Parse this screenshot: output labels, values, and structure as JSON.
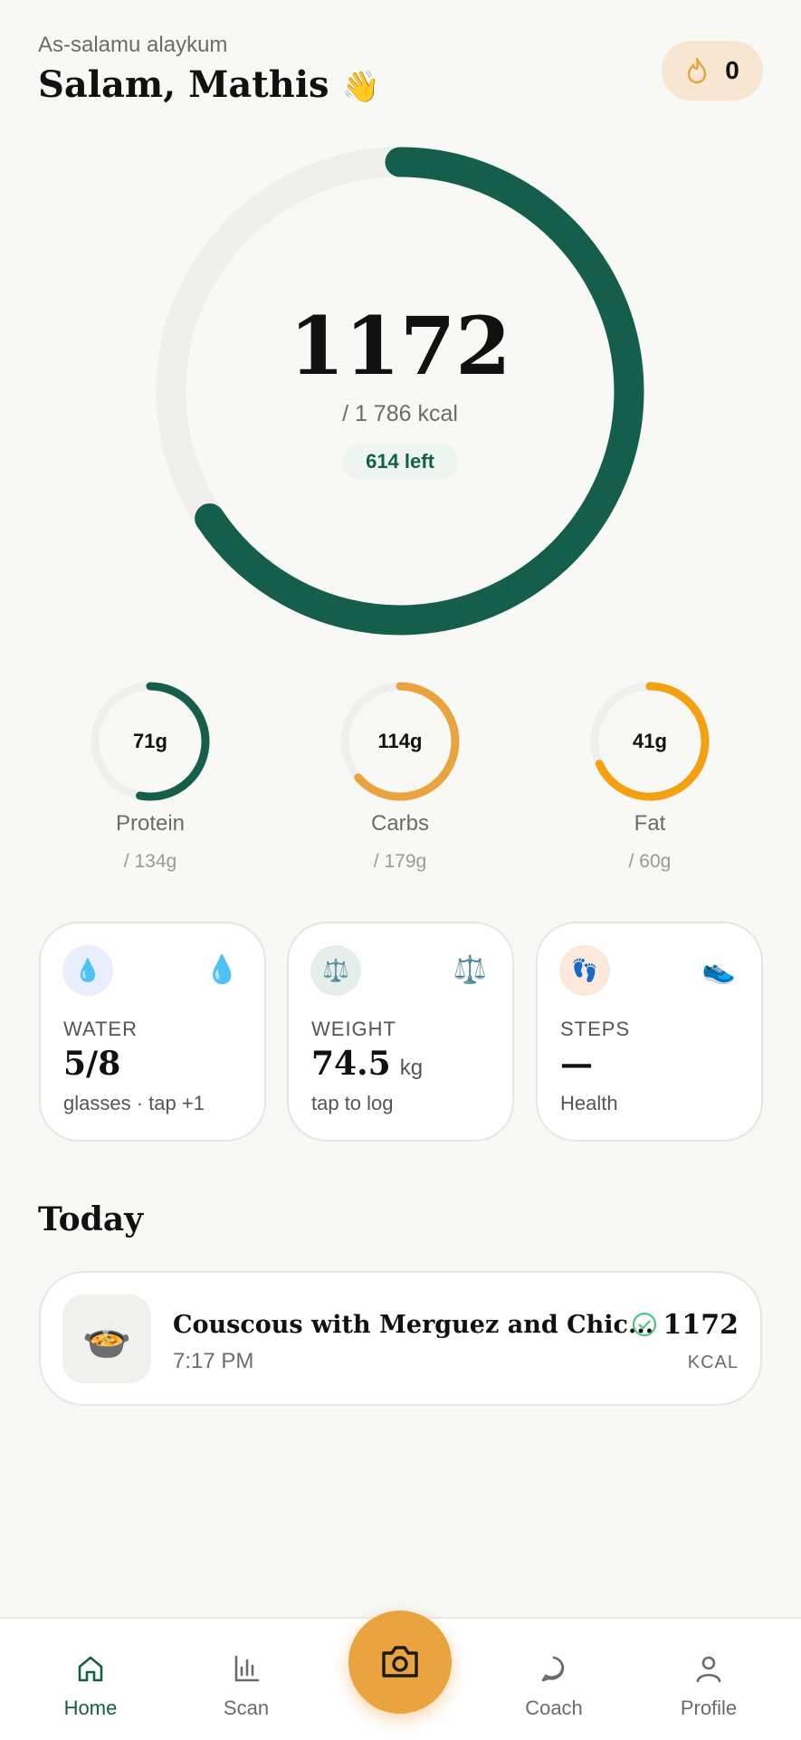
{
  "header": {
    "greeting": "As-salamu alaykum",
    "title": "Salam, Mathis",
    "emoji": "👋",
    "streak": "0"
  },
  "calories": {
    "consumed": 1172,
    "goal": 1786,
    "goal_label": "/ 1 786 kcal",
    "remaining_label": "614 left"
  },
  "macros": [
    {
      "name": "Protein",
      "value": 71,
      "value_label": "71g",
      "goal": 134,
      "goal_label": "/ 134g",
      "color": "#155e4b"
    },
    {
      "name": "Carbs",
      "value": 114,
      "value_label": "114g",
      "goal": 179,
      "goal_label": "/ 179g",
      "color": "#e9a440"
    },
    {
      "name": "Fat",
      "value": 41,
      "value_label": "41g",
      "goal": 60,
      "goal_label": "/ 60g",
      "color": "#f5a00f"
    }
  ],
  "cards": [
    {
      "label": "WATER",
      "value": "5/8",
      "sub": "glasses · tap +1"
    },
    {
      "label": "WEIGHT",
      "value": "74.5",
      "unit": "kg",
      "sub": "tap to log"
    },
    {
      "label": "STEPS",
      "value": "—",
      "sub": "Health"
    }
  ],
  "today": {
    "title": "Today",
    "meals": [
      {
        "name": "Couscous with Merguez and Chic...",
        "time": "7:17 PM",
        "kcal": "1172",
        "kcal_unit": "KCAL"
      }
    ]
  },
  "nav": [
    {
      "label": "Home"
    },
    {
      "label": "Scan"
    },
    {
      "label": "Coach"
    },
    {
      "label": "Profile"
    }
  ]
}
